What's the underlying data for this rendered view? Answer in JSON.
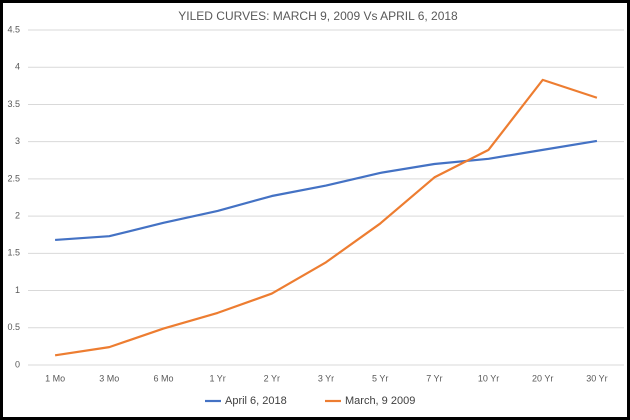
{
  "chart_data": {
    "type": "line",
    "title": "YILED CURVES: MARCH 9, 2009 Vs APRIL 6, 2018",
    "categories": [
      "1 Mo",
      "3 Mo",
      "6 Mo",
      "1 Yr",
      "2 Yr",
      "3 Yr",
      "5 Yr",
      "7 Yr",
      "10 Yr",
      "20 Yr",
      "30 Yr"
    ],
    "series": [
      {
        "name": "April 6, 2018",
        "color": "#4472c4",
        "values": [
          1.68,
          1.73,
          1.91,
          2.07,
          2.27,
          2.41,
          2.58,
          2.7,
          2.77,
          2.89,
          3.01
        ]
      },
      {
        "name": "March, 9 2009",
        "color": "#ed7d31",
        "values": [
          0.13,
          0.24,
          0.49,
          0.7,
          0.96,
          1.38,
          1.9,
          2.52,
          2.89,
          3.83,
          3.59
        ]
      }
    ],
    "ylim": [
      0,
      4.5
    ],
    "yticks": [
      0,
      0.5,
      1,
      1.5,
      2,
      2.5,
      3,
      3.5,
      4,
      4.5
    ],
    "grid": true,
    "legend": "bottom"
  }
}
